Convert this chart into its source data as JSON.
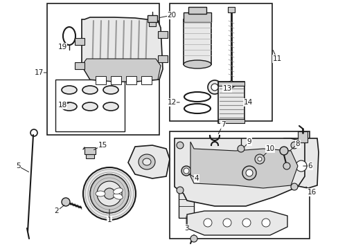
{
  "bg_color": "#ffffff",
  "fig_width": 4.89,
  "fig_height": 3.6,
  "dpi": 100,
  "line_color": "#1a1a1a",
  "fill_light": "#e8e8e8",
  "fill_mid": "#cccccc",
  "fill_dark": "#aaaaaa"
}
